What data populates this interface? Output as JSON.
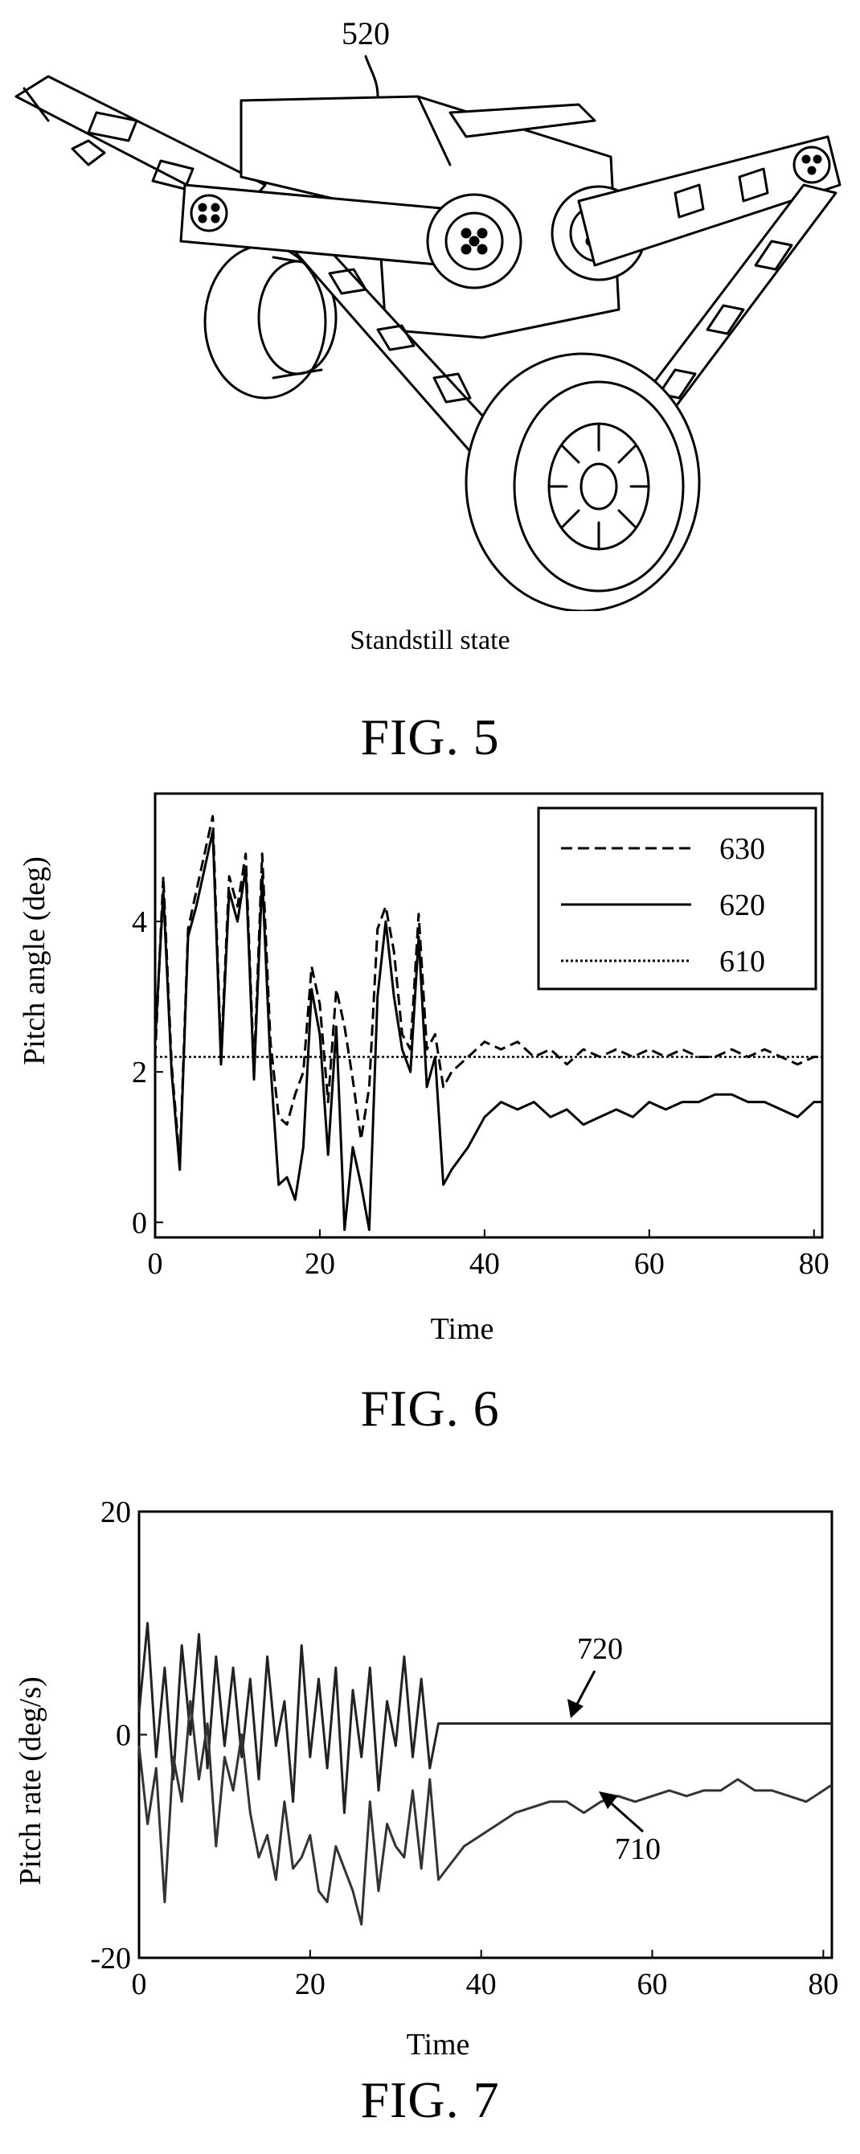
{
  "fig5": {
    "ref_label": "520",
    "subtitle": "Standstill state",
    "caption": "FIG. 5"
  },
  "fig6": {
    "caption": "FIG. 6",
    "chart_data": {
      "type": "line",
      "xlabel": "Time",
      "ylabel": "Pitch angle (deg)",
      "xlim": [
        0,
        81
      ],
      "ylim": [
        -0.2,
        5.7
      ],
      "xticks": [
        "0",
        "20",
        "40",
        "60",
        "80"
      ],
      "yticks": [
        "0",
        "2",
        "4"
      ],
      "grid": false,
      "legend_position": "top-right",
      "series": [
        {
          "name": "630",
          "style": "dashed",
          "x": [
            0,
            1,
            2,
            3,
            4,
            5,
            6,
            7,
            8,
            9,
            10,
            11,
            12,
            13,
            14,
            15,
            16,
            17,
            18,
            19,
            20,
            21,
            22,
            23,
            24,
            25,
            26,
            27,
            28,
            29,
            30,
            31,
            32,
            33,
            34,
            35,
            36,
            38,
            40,
            42,
            44,
            46,
            48,
            50,
            52,
            54,
            56,
            58,
            60,
            62,
            64,
            66,
            68,
            70,
            72,
            74,
            76,
            78,
            80,
            81
          ],
          "y": [
            2.2,
            4.6,
            2.1,
            0.8,
            3.9,
            4.4,
            4.9,
            5.4,
            2.2,
            4.6,
            4.2,
            4.9,
            2.0,
            4.9,
            2.4,
            1.4,
            1.3,
            1.7,
            2.0,
            3.4,
            2.9,
            1.6,
            3.1,
            2.6,
            1.9,
            1.1,
            1.8,
            3.9,
            4.2,
            3.6,
            2.5,
            2.3,
            4.1,
            2.3,
            2.5,
            1.8,
            2.0,
            2.2,
            2.4,
            2.3,
            2.4,
            2.2,
            2.3,
            2.1,
            2.3,
            2.2,
            2.3,
            2.2,
            2.3,
            2.2,
            2.3,
            2.2,
            2.2,
            2.3,
            2.2,
            2.3,
            2.2,
            2.1,
            2.2,
            2.2
          ]
        },
        {
          "name": "620",
          "style": "solid",
          "x": [
            0,
            1,
            2,
            3,
            4,
            5,
            6,
            7,
            8,
            9,
            10,
            11,
            12,
            13,
            14,
            15,
            16,
            17,
            18,
            19,
            20,
            21,
            22,
            23,
            24,
            25,
            26,
            27,
            28,
            29,
            30,
            31,
            32,
            33,
            34,
            35,
            36,
            38,
            40,
            42,
            44,
            46,
            48,
            50,
            52,
            54,
            56,
            58,
            60,
            62,
            64,
            66,
            68,
            70,
            72,
            74,
            76,
            78,
            80,
            81
          ],
          "y": [
            2.4,
            4.4,
            2.0,
            0.7,
            3.8,
            4.2,
            4.7,
            5.2,
            2.1,
            4.4,
            4.0,
            4.7,
            1.9,
            4.6,
            2.1,
            0.5,
            0.6,
            0.3,
            1.0,
            3.1,
            2.5,
            0.9,
            2.6,
            -0.1,
            1.0,
            0.5,
            -0.1,
            3.0,
            4.0,
            3.0,
            2.3,
            2.0,
            3.8,
            1.8,
            2.2,
            0.5,
            0.7,
            1.0,
            1.4,
            1.6,
            1.5,
            1.6,
            1.4,
            1.5,
            1.3,
            1.4,
            1.5,
            1.4,
            1.6,
            1.5,
            1.6,
            1.6,
            1.7,
            1.7,
            1.6,
            1.6,
            1.5,
            1.4,
            1.6,
            1.6
          ]
        },
        {
          "name": "610",
          "style": "dotted",
          "x": [
            0,
            81
          ],
          "y": [
            2.2,
            2.2
          ]
        }
      ]
    }
  },
  "fig7": {
    "caption": "FIG. 7",
    "chart_data": {
      "type": "line",
      "xlabel": "Time",
      "ylabel": "Pitch rate (deg/s)",
      "xlim": [
        0,
        81
      ],
      "ylim": [
        -20,
        20
      ],
      "xticks": [
        "0",
        "20",
        "40",
        "60",
        "80"
      ],
      "yticks": [
        "-20",
        "0",
        "20"
      ],
      "grid": false,
      "annotations": [
        "720",
        "710"
      ],
      "series": [
        {
          "label": "720",
          "x": [
            0,
            1,
            2,
            3,
            4,
            5,
            6,
            7,
            8,
            9,
            10,
            11,
            12,
            13,
            14,
            15,
            16,
            17,
            18,
            19,
            20,
            21,
            22,
            23,
            24,
            25,
            26,
            27,
            28,
            29,
            30,
            31,
            32,
            33,
            34,
            35,
            36,
            40,
            45,
            50,
            55,
            60,
            65,
            70,
            75,
            80,
            81
          ],
          "y": [
            2,
            10,
            -2,
            6,
            -4,
            8,
            0,
            9,
            -3,
            7,
            -1,
            6,
            -2,
            5,
            -4,
            7,
            -1,
            3,
            -6,
            8,
            -2,
            5,
            -3,
            6,
            -7,
            4,
            -2,
            6,
            -5,
            3,
            -1,
            7,
            -2,
            5,
            -3,
            1,
            1,
            1,
            1,
            1,
            1,
            1,
            1,
            1,
            1,
            1,
            1
          ]
        },
        {
          "label": "710",
          "x": [
            0,
            1,
            2,
            3,
            4,
            5,
            6,
            7,
            8,
            9,
            10,
            11,
            12,
            13,
            14,
            15,
            16,
            17,
            18,
            19,
            20,
            21,
            22,
            23,
            24,
            25,
            26,
            27,
            28,
            29,
            30,
            31,
            32,
            33,
            34,
            35,
            36,
            38,
            40,
            42,
            44,
            46,
            48,
            50,
            52,
            54,
            56,
            58,
            60,
            62,
            64,
            66,
            68,
            70,
            72,
            74,
            76,
            78,
            80,
            81
          ],
          "y": [
            -1,
            -8,
            -3,
            -15,
            -2,
            -6,
            3,
            -4,
            1,
            -10,
            -2,
            -5,
            0,
            -7,
            -11,
            -9,
            -13,
            -6,
            -12,
            -11,
            -9,
            -14,
            -15,
            -10,
            -12,
            -14,
            -17,
            -6,
            -14,
            -8,
            -10,
            -11,
            -5,
            -12,
            -4,
            -13,
            -12,
            -10,
            -9,
            -8,
            -7,
            -6.5,
            -6,
            -6,
            -7,
            -6,
            -5.5,
            -6,
            -5.5,
            -5,
            -5.5,
            -5,
            -5,
            -4,
            -5,
            -5,
            -5.5,
            -6,
            -5,
            -4.5
          ]
        }
      ]
    }
  }
}
